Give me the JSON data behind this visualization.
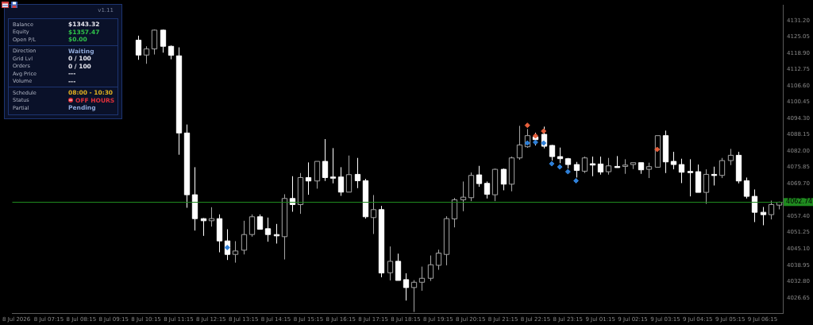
{
  "chart_data": [
    {
      "type": "candlestick",
      "marker": "diamond",
      "legend": false,
      "grid": false,
      "colors": [
        null,
        null,
        null,
        null,
        null,
        null,
        null,
        null,
        null,
        null,
        null,
        null,
        null,
        null,
        null,
        "#ffffff",
        "#a6a6a6",
        "#a6a6a6",
        "#ffffff",
        "#ffffff",
        "#ffffff",
        "#ffffff",
        "#ffffff",
        "#ffffff",
        "#a6a6a6",
        "#ffffff",
        "#ffffff",
        "#a6a6a6",
        "#a6a6a6",
        "#a6a6a6",
        "#ffffff",
        "#ffffff",
        "#ffffff",
        "#a6a6a6",
        "#ffffff",
        "#a6a6a6",
        "#ffffff",
        "#a6a6a6",
        "#ffffff",
        "#ffffff",
        "#ffffff",
        "#a6a6a6",
        "#ffffff",
        "#ffffff",
        "#a6a6a6",
        "#ffffff",
        "#a6a6a6",
        "#ffffff",
        "#ffffff",
        "#a6a6a6",
        "#a6a6a6",
        "#a6a6a6",
        "#a6a6a6",
        "#a6a6a6",
        "#a6a6a6",
        "#a6a6a6",
        "#a6a6a6",
        "#ffffff",
        "#ffffff",
        "#a6a6a6",
        "#ffffff",
        "#a6a6a6",
        "#a6a6a6",
        "#a6a6a6",
        "#ffffff",
        "#ffffff",
        "#ffffff",
        "#ffffff",
        "#ffffff",
        "#ffffff",
        "#a6a6a6",
        "#ffffff",
        "#ffffff",
        "#a6a6a6",
        "#ffffff",
        "#a6a6a6",
        "#a6a6a6",
        "#ffffff",
        "#a6a6a6",
        "#a6a6a6",
        "#ffffff",
        "#ffffff",
        "#ffffff",
        "#ffffff",
        "#ffffff",
        "#a6a6a6",
        "#ffffff",
        "#a6a6a6",
        "#a6a6a6",
        "#ffffff",
        "#ffffff",
        "#ffffff",
        "#ffffff",
        "#a6a6a6",
        "#a6a6a6"
      ],
      "categories": [
        "8 Jul 2026",
        null,
        null,
        null,
        "8 Jul 07:15",
        null,
        null,
        null,
        "8 Jul 08:15",
        null,
        null,
        null,
        "8 Jul 09:15",
        null,
        null,
        null,
        "8 Jul 10:15",
        null,
        null,
        null,
        "8 Jul 11:15",
        null,
        null,
        null,
        "8 Jul 12:15",
        null,
        null,
        null,
        "8 Jul 13:15",
        null,
        null,
        null,
        "8 Jul 14:15",
        null,
        null,
        null,
        "8 Jul 15:15",
        null,
        null,
        null,
        "8 Jul 16:15",
        null,
        null,
        null,
        "8 Jul 17:15",
        null,
        null,
        null,
        "8 Jul 18:15",
        null,
        null,
        null,
        "8 Jul 19:15",
        null,
        null,
        null,
        "8 Jul 20:15",
        null,
        null,
        null,
        "8 Jul 21:15",
        null,
        null,
        null,
        "8 Jul 22:15",
        null,
        null,
        null,
        "8 Jul 23:15",
        null,
        null,
        null,
        "9 Jul 01:15",
        null,
        null,
        null,
        "9 Jul 02:15",
        null,
        null,
        null,
        "9 Jul 03:15",
        null,
        null,
        null,
        "9 Jul 04:15",
        null,
        null,
        null,
        "9 Jul 05:15",
        null,
        null,
        null,
        "9 Jul 06:15",
        null,
        null
      ],
      "ohlc": [
        null,
        null,
        null,
        null,
        null,
        null,
        null,
        null,
        null,
        null,
        null,
        null,
        null,
        null,
        null,
        [
          4123.8,
          4125.5,
          4116.4,
          4118.2
        ],
        [
          4118.2,
          4121.5,
          4114.9,
          4120.5
        ],
        [
          4120.5,
          4127.8,
          4118.4,
          4127.6
        ],
        [
          4127.6,
          4127.8,
          4119.1,
          4121.5
        ],
        [
          4121.5,
          4121.8,
          4116.6,
          4118.1
        ],
        [
          4117.9,
          4121.1,
          4080.6,
          4088.8
        ],
        [
          4088.8,
          4092.0,
          4060.6,
          4065.5
        ],
        [
          4065.5,
          4075.9,
          4052.0,
          4056.5
        ],
        [
          4056.5,
          4056.7,
          4050.0,
          4055.7
        ],
        [
          4055.7,
          4060.8,
          4053.5,
          4056.5
        ],
        [
          4056.5,
          4058.1,
          4043.8,
          4048.1
        ],
        [
          4048.1,
          4052.5,
          4040.9,
          4043.0
        ],
        [
          4043.0,
          4048.0,
          4039.9,
          4044.3
        ],
        [
          4044.6,
          4055.7,
          4043.0,
          4050.5
        ],
        [
          4050.5,
          4058.1,
          4049.7,
          4057.2
        ],
        [
          4057.2,
          4058.1,
          4052.5,
          4052.5
        ],
        [
          4052.7,
          4056.9,
          4047.8,
          4050.5
        ],
        [
          4050.5,
          4054.5,
          4047.1,
          4050.0
        ],
        [
          4049.7,
          4065.7,
          4041.1,
          4064.1
        ],
        [
          4064.1,
          4072.5,
          4059.1,
          4061.8
        ],
        [
          4061.8,
          4073.7,
          4058.3,
          4072.0
        ],
        [
          4072.0,
          4077.7,
          4065.5,
          4070.7
        ],
        [
          4070.7,
          4078.1,
          4067.8,
          4078.1
        ],
        [
          4078.1,
          4086.5,
          4070.7,
          4072.0
        ],
        [
          4072.2,
          4083.1,
          4069.8,
          4072.0
        ],
        [
          4072.2,
          4075.9,
          4065.1,
          4066.5
        ],
        [
          4066.5,
          4080.3,
          4066.5,
          4073.1
        ],
        [
          4073.2,
          4079.4,
          4068.0,
          4070.8
        ],
        [
          4070.8,
          4071.5,
          4056.5,
          4057.2
        ],
        [
          4056.9,
          4065.4,
          4050.7,
          4059.9
        ],
        [
          4059.9,
          4061.3,
          4034.4,
          4036.0
        ],
        [
          4036.1,
          4046.0,
          4033.2,
          4040.4
        ],
        [
          4040.4,
          4043.3,
          4033.2,
          4033.2
        ],
        [
          4033.5,
          4035.9,
          4025.6,
          4030.5
        ],
        [
          4030.5,
          4033.3,
          4021.3,
          4032.5
        ],
        [
          4032.5,
          4038.4,
          4029.3,
          4034.0
        ],
        [
          4034.0,
          4042.6,
          4033.0,
          4039.1
        ],
        [
          4038.9,
          4044.8,
          4037.2,
          4043.5
        ],
        [
          4043.0,
          4057.4,
          4038.9,
          4056.5
        ],
        [
          4056.4,
          4064.3,
          4053.2,
          4063.6
        ],
        [
          4063.6,
          4070.5,
          4059.3,
          4064.6
        ],
        [
          4064.4,
          4073.9,
          4063.1,
          4072.8
        ],
        [
          4073.0,
          4076.4,
          4068.5,
          4069.7
        ],
        [
          4069.8,
          4070.5,
          4064.1,
          4065.7
        ],
        [
          4065.5,
          4075.4,
          4063.1,
          4075.1
        ],
        [
          4075.1,
          4075.4,
          4067.2,
          4069.5
        ],
        [
          4069.5,
          4079.9,
          4066.8,
          4079.4
        ],
        [
          4079.4,
          4091.5,
          4078.7,
          4084.3
        ],
        [
          4083.6,
          4090.3,
          4083.2,
          4087.8
        ],
        [
          4087.3,
          4088.9,
          4084.1,
          4086.3
        ],
        [
          4088.3,
          4091.2,
          4083.0,
          4083.8
        ],
        [
          4084.1,
          4084.3,
          4078.4,
          4079.9
        ],
        [
          4079.9,
          4083.3,
          4077.4,
          4079.1
        ],
        [
          4079.1,
          4079.4,
          4075.4,
          4076.9
        ],
        [
          4076.9,
          4077.9,
          4072.0,
          4074.7
        ],
        [
          4074.4,
          4079.9,
          4073.7,
          4079.4
        ],
        [
          4077.2,
          4079.9,
          4072.5,
          4076.7
        ],
        [
          4077.1,
          4079.9,
          4073.1,
          4074.1
        ],
        [
          4074.2,
          4079.4,
          4073.1,
          4076.4
        ],
        [
          4076.2,
          4080.1,
          4075.7,
          4075.8
        ],
        [
          4076.2,
          4078.9,
          4073.4,
          4076.7
        ],
        [
          4076.9,
          4077.6,
          4075.2,
          4077.6
        ],
        [
          4077.6,
          4077.6,
          4073.4,
          4074.9
        ],
        [
          4075.1,
          4077.6,
          4071.8,
          4076.1
        ],
        [
          4075.9,
          4087.8,
          4075.9,
          4087.8
        ],
        [
          4087.8,
          4089.7,
          4073.7,
          4077.9
        ],
        [
          4078.1,
          4081.7,
          4075.1,
          4076.9
        ],
        [
          4076.9,
          4079.1,
          4069.9,
          4074.0
        ],
        [
          4074.3,
          4078.9,
          4064.9,
          4073.9
        ],
        [
          4074.2,
          4076.9,
          4066.4,
          4066.4
        ],
        [
          4066.4,
          4075.1,
          4062.1,
          4073.2
        ],
        [
          4073.2,
          4076.1,
          4069.0,
          4072.8
        ],
        [
          4072.8,
          4079.4,
          4071.8,
          4078.4
        ],
        [
          4078.4,
          4082.8,
          4076.7,
          4080.4
        ],
        [
          4080.4,
          4081.7,
          4069.8,
          4070.7
        ],
        [
          4070.8,
          4072.0,
          4064.1,
          4064.9
        ],
        [
          4064.9,
          4067.5,
          4055.2,
          4058.9
        ],
        [
          4058.9,
          4060.9,
          4054.0,
          4058.0
        ],
        [
          4058.0,
          4063.3,
          4056.2,
          4061.8
        ],
        [
          4061.6,
          4062.9,
          4060.0,
          4062.7
        ]
      ],
      "series": [
        {
          "type": "scatter",
          "color": "#e8603c",
          "values": [
            null,
            null,
            null,
            null,
            null,
            null,
            null,
            null,
            null,
            null,
            null,
            null,
            null,
            null,
            null,
            null,
            null,
            null,
            null,
            null,
            null,
            null,
            null,
            null,
            null,
            null,
            null,
            null,
            null,
            null,
            null,
            null,
            null,
            null,
            null,
            null,
            null,
            null,
            null,
            null,
            null,
            null,
            null,
            null,
            null,
            null,
            null,
            null,
            null,
            null,
            null,
            null,
            null,
            null,
            null,
            null,
            null,
            null,
            null,
            null,
            null,
            null,
            null,
            4091.7,
            4087.7,
            4089.5,
            null,
            null,
            null,
            null,
            null,
            null,
            null,
            null,
            null,
            null,
            null,
            null,
            null,
            4082.6,
            null,
            null,
            null,
            null,
            null,
            null,
            null,
            null,
            null,
            null,
            null,
            null,
            null,
            null,
            null
          ]
        },
        {
          "type": "scatter",
          "color": "#2f80d8",
          "values": [
            null,
            null,
            null,
            null,
            null,
            null,
            null,
            null,
            null,
            null,
            null,
            null,
            null,
            null,
            null,
            null,
            null,
            null,
            null,
            null,
            null,
            null,
            null,
            null,
            null,
            null,
            4045.6,
            null,
            null,
            null,
            null,
            null,
            null,
            null,
            null,
            null,
            null,
            null,
            null,
            null,
            null,
            null,
            null,
            null,
            null,
            null,
            null,
            null,
            null,
            null,
            null,
            null,
            null,
            null,
            null,
            null,
            null,
            null,
            null,
            null,
            null,
            null,
            null,
            4085.0,
            4085.3,
            4085.0,
            4077.2,
            4076.0,
            4074.2,
            4070.8,
            null,
            null,
            null,
            null,
            null,
            null,
            null,
            null,
            null,
            null,
            null,
            null,
            null,
            null,
            null,
            null,
            null,
            null,
            null,
            null,
            null,
            null,
            null,
            null,
            null
          ]
        }
      ],
      "ylim": [
        4020.7,
        4137.1
      ],
      "yticks": [
        {
          "value": 4131.2,
          "label": "4131.20"
        },
        4125.05,
        {
          "value": 4118.9,
          "label": "4118.90"
        },
        4112.75,
        {
          "value": 4106.6,
          "label": "4106.60"
        },
        4100.45,
        {
          "value": 4094.3,
          "label": "4094.30"
        },
        4088.15,
        {
          "value": 4082,
          "label": "4082.00"
        },
        4075.85,
        {
          "value": 4069.7,
          "label": "4069.70"
        },
        {
          "value": 4057.4,
          "label": "4057.40"
        },
        4051.25,
        {
          "value": 4045.1,
          "label": "4045.10"
        },
        4038.95,
        {
          "value": 4032.8,
          "label": "4032.80"
        },
        4026.65
      ],
      "ref_lines": [
        {
          "axis": "y",
          "value": 4062.74,
          "label": "4062.74",
          "color": "#1f8a1f"
        }
      ]
    },
    {
      "type": "other",
      "title": "v1.11",
      "annotations": [
        "Balance",
        "$1343.32",
        "Equity",
        "$1357.47",
        "Open P/L",
        "$0.00",
        "Direction",
        "Waiting",
        "Grid Lvl",
        "0 / 100",
        "Orders",
        "0 / 100",
        "Avg Price",
        "---",
        "Volume",
        "---",
        "Schedule",
        "08:00 - 10:30",
        "Status",
        "OFF HOURS",
        "Partial",
        "Pending"
      ]
    }
  ]
}
